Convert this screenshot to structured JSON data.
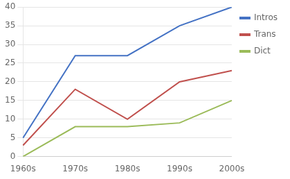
{
  "chart_data": {
    "type": "line",
    "categories": [
      "1960s",
      "1970s",
      "1980s",
      "1990s",
      "2000s"
    ],
    "series": [
      {
        "name": "Intros",
        "color": "#4472C4",
        "values": [
          5,
          27,
          27,
          35,
          40
        ]
      },
      {
        "name": "Trans",
        "color": "#C0504D",
        "values": [
          3,
          18,
          10,
          20,
          23
        ]
      },
      {
        "name": "Dict",
        "color": "#9BBB59",
        "values": [
          0,
          8,
          8,
          9,
          15
        ]
      }
    ],
    "ylim": [
      0,
      40
    ],
    "yticks": [
      0,
      5,
      10,
      15,
      20,
      25,
      30,
      35,
      40
    ],
    "grid": true,
    "legend": "right"
  }
}
